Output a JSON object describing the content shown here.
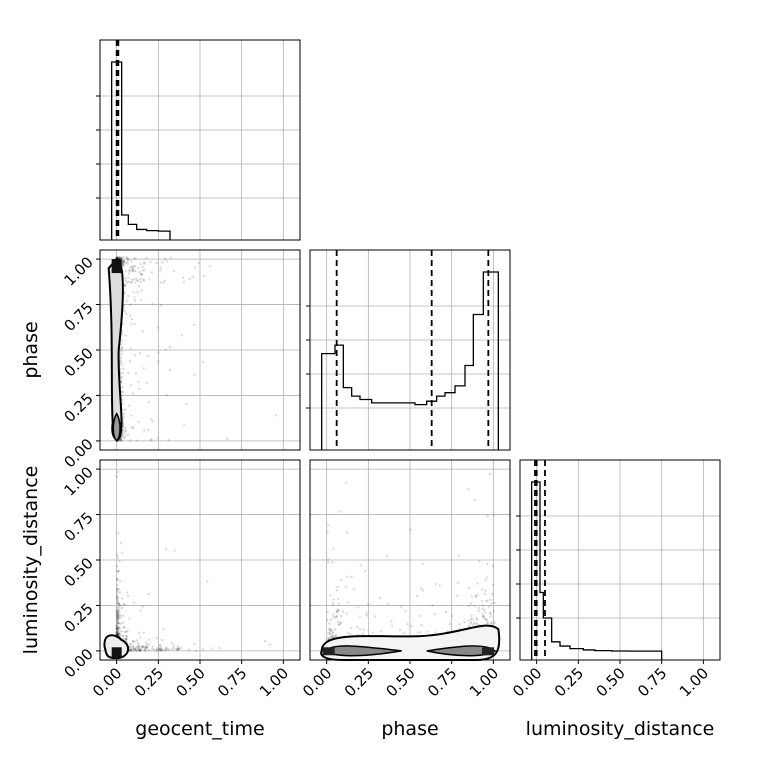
{
  "chart_data": {
    "type": "corner",
    "parameters": [
      "geocent_time",
      "phase",
      "luminosity_distance"
    ],
    "axis_labels": {
      "x": [
        "geocent_time",
        "phase",
        "luminosity_distance"
      ],
      "y_row1": "phase",
      "y_row2": "luminosity_distance"
    },
    "xlim": [
      -0.1,
      1.1
    ],
    "ylim": [
      -0.05,
      1.05
    ],
    "ticks": [
      0.0,
      0.25,
      0.5,
      0.75,
      1.0
    ],
    "tick_labels": [
      "0.00",
      "0.25",
      "0.50",
      "0.75",
      "1.00"
    ],
    "grid": true,
    "marginals": [
      {
        "param": "geocent_time",
        "bin_edges": [
          -0.03,
          0.0,
          0.03,
          0.07,
          0.12,
          0.18,
          0.25,
          0.32
        ],
        "density": [
          1.0,
          1.0,
          0.1,
          0.045,
          0.015,
          0.008,
          0.005
        ],
        "quantiles": [
          0.0,
          0.002,
          0.01
        ]
      },
      {
        "param": "phase",
        "bin_edges": [
          -0.03,
          0.01,
          0.05,
          0.1,
          0.15,
          0.2,
          0.27,
          0.33,
          0.4,
          0.47,
          0.53,
          0.6,
          0.66,
          0.71,
          0.77,
          0.83,
          0.88,
          0.94,
          1.0,
          1.03
        ],
        "density": [
          0.52,
          0.52,
          0.57,
          0.32,
          0.27,
          0.25,
          0.23,
          0.23,
          0.23,
          0.23,
          0.22,
          0.24,
          0.27,
          0.29,
          0.33,
          0.45,
          0.75,
          1.0,
          1.0
        ],
        "quantiles": [
          0.06,
          0.63,
          0.97
        ]
      },
      {
        "param": "luminosity_distance",
        "bin_edges": [
          -0.03,
          0.02,
          0.04,
          0.09,
          0.14,
          0.2,
          0.28,
          0.35,
          0.45,
          0.55,
          0.65,
          0.75
        ],
        "density": [
          1.0,
          0.35,
          0.2,
          0.06,
          0.035,
          0.02,
          0.012,
          0.008,
          0.006,
          0.005,
          0.005
        ],
        "quantiles": [
          -0.01,
          0.0,
          0.05
        ]
      }
    ],
    "pairs": [
      {
        "x": "geocent_time",
        "y": "phase",
        "row": 1,
        "col": 0
      },
      {
        "x": "geocent_time",
        "y": "luminosity_distance",
        "row": 2,
        "col": 0
      },
      {
        "x": "phase",
        "y": "luminosity_distance",
        "row": 2,
        "col": 1
      }
    ]
  }
}
